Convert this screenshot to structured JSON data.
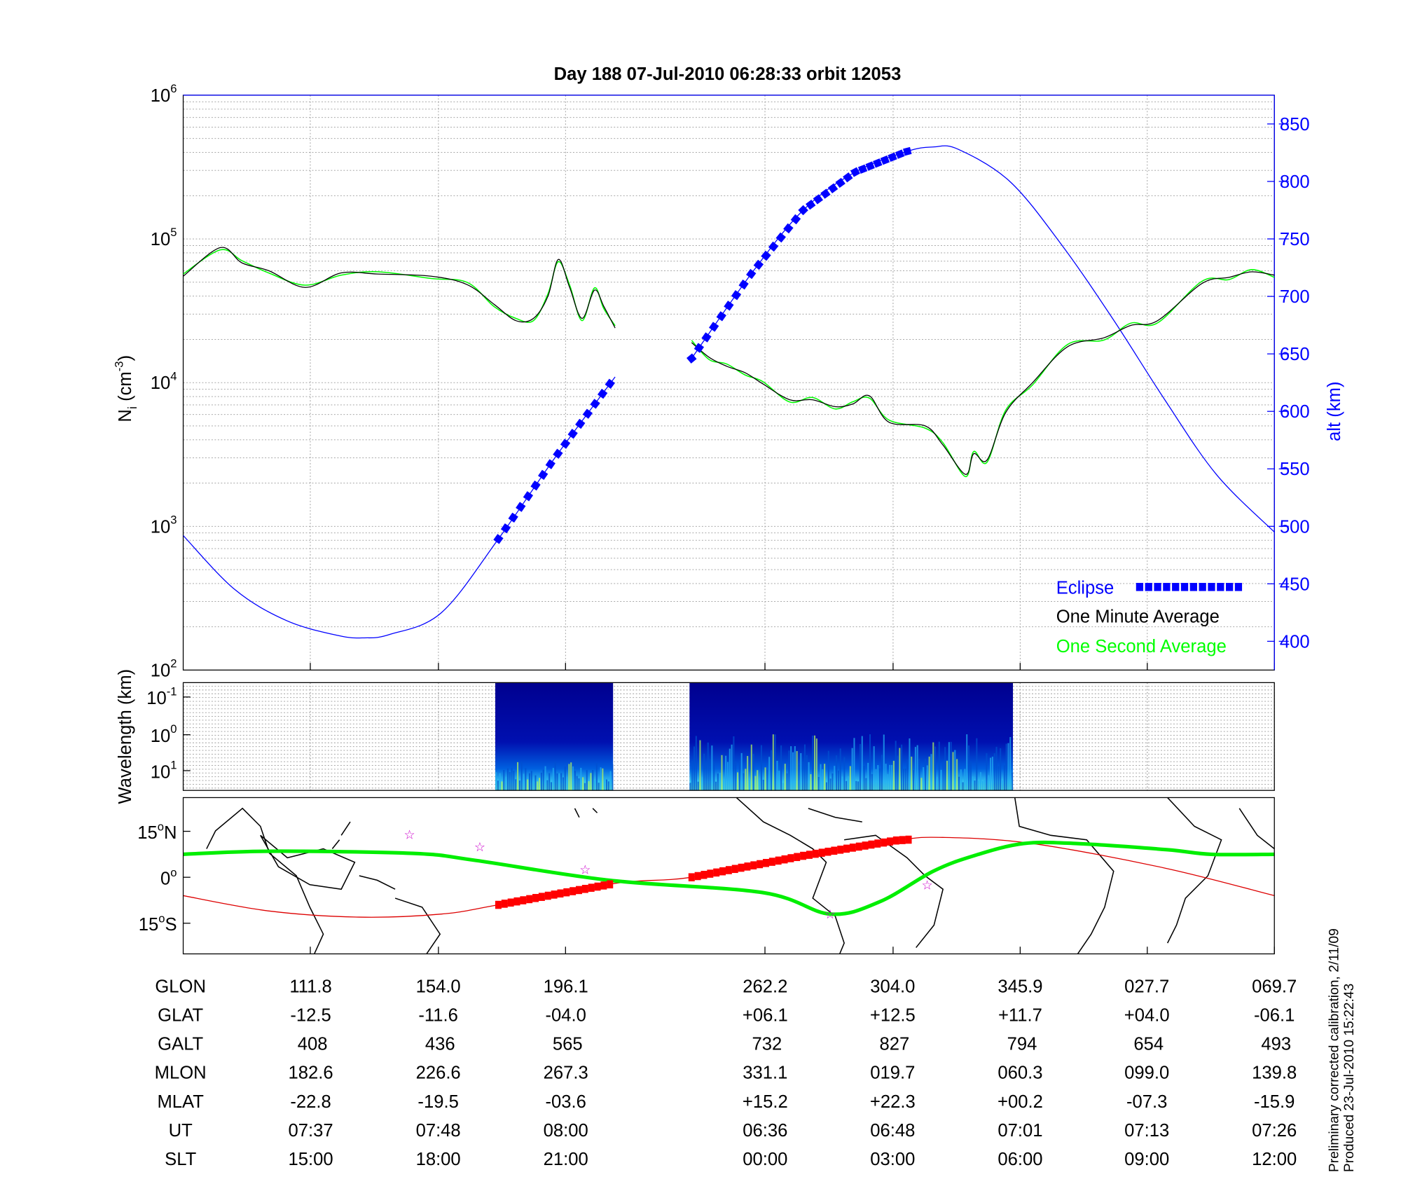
{
  "colors": {
    "eclipse": "#0000ff",
    "minute": "#000000",
    "second": "#00ff00",
    "altitude": "#0000ff",
    "track_orbit": "#00ee00",
    "track_foot": "#dd0000",
    "star": "#cc00cc"
  },
  "chart_data": [
    {
      "type": "line",
      "title": "Day 188  07-Jul-2010 06:28:33   orbit 12053",
      "xlabel": "",
      "ylabel_main": "N",
      "ylabel_sub": "i",
      "ylabel_unit_open": " (cm",
      "ylabel_unit_exp": "-3",
      "ylabel_unit_close": ")",
      "y_scale": "log",
      "ylim": [
        100,
        1000000
      ],
      "yticks": [
        {
          "base": "10",
          "exp": "2"
        },
        {
          "base": "10",
          "exp": "3"
        },
        {
          "base": "10",
          "exp": "4"
        },
        {
          "base": "10",
          "exp": "5"
        },
        {
          "base": "10",
          "exp": "6"
        }
      ],
      "y2label": "alt (km)",
      "y2lim": [
        375,
        875
      ],
      "y2ticks": [
        "400",
        "450",
        "500",
        "550",
        "600",
        "650",
        "700",
        "750",
        "800",
        "850"
      ],
      "xlim_minutes": [
        0,
        105.6
      ],
      "xticks_minutes": [
        12.3,
        24.7,
        37.0,
        56.3,
        68.7,
        81.0,
        93.3,
        105.6
      ],
      "grid": true,
      "legend_position": "bottom-right",
      "legend": [
        {
          "label": "Eclipse",
          "color": "#0000ff"
        },
        {
          "label": "One Minute Average",
          "color": "#000000"
        },
        {
          "label": "One Second Average",
          "color": "#00ff00"
        }
      ],
      "series": [
        {
          "name": "Ni one minute average (segment 1)",
          "x": [
            0,
            3.6,
            5.7,
            8.3,
            11.8,
            15.3,
            18.8,
            24,
            27.5,
            30.1,
            32.2,
            33.9,
            35.3,
            36.3,
            37.4,
            38.6,
            39.8,
            40.7,
            41.8
          ],
          "y": [
            55000,
            87000,
            68000,
            60000,
            46000,
            58000,
            57000,
            55000,
            48000,
            35000,
            27000,
            28000,
            40000,
            72000,
            46000,
            28000,
            44000,
            34000,
            24000
          ]
        },
        {
          "name": "Ni one minute average (segment 2)",
          "x": [
            49.2,
            50.9,
            52.6,
            54.4,
            56.1,
            58.7,
            60.9,
            63.1,
            64.8,
            66.4,
            68.3,
            71.8,
            73.5,
            75.7,
            76.5,
            77.8,
            79.6,
            82.2,
            85.6,
            89.1,
            91.7,
            94.3,
            98.6,
            101.2,
            103.4,
            105.6
          ],
          "y": [
            19000,
            15000,
            13000,
            11700,
            9800,
            7600,
            7600,
            6800,
            7100,
            8100,
            5300,
            5000,
            3700,
            2300,
            3200,
            2900,
            6200,
            10000,
            17800,
            20500,
            25000,
            27000,
            49000,
            54000,
            59000,
            56000
          ]
        },
        {
          "name": "Altitude (km)",
          "x": [
            0,
            5,
            10,
            15,
            17.5,
            20,
            25,
            30.5,
            36,
            41.8,
            49.2,
            55,
            60,
            65,
            70,
            72.6,
            75,
            80,
            85,
            90,
            95,
            100,
            105.6
          ],
          "y": [
            492,
            445,
            418,
            405,
            403,
            406,
            425,
            489,
            560,
            630,
            646,
            720,
            775,
            808,
            826,
            830,
            828,
            800,
            745,
            680,
            610,
            545,
            495
          ]
        },
        {
          "name": "Eclipse",
          "segments_x": [
            [
              30.5,
              41.8
            ],
            [
              49.2,
              70.2
            ]
          ]
        }
      ]
    },
    {
      "type": "heatmap",
      "ylabel": "Wavelength (km)",
      "yticks": [
        {
          "base": "10",
          "exp": "-1"
        },
        {
          "base": "10",
          "exp": "0"
        },
        {
          "base": "10",
          "exp": "1"
        }
      ],
      "data_intervals_minutes": [
        [
          30.2,
          41.6
        ],
        [
          49.0,
          80.3
        ]
      ],
      "colormap": "jet"
    },
    {
      "type": "line",
      "name": "ground track map",
      "yticks": [
        {
          "deg": "15",
          "sup": "o",
          "hemi": "N"
        },
        {
          "deg": "0",
          "sup": "o",
          "hemi": ""
        },
        {
          "deg": "15",
          "sup": "o",
          "hemi": "S"
        }
      ],
      "ylim_deg": [
        -25,
        26
      ],
      "orbit_track": {
        "x": [
          0,
          8.3,
          22.2,
          28.3,
          41.3,
          56.1,
          62.6,
          67.4,
          72.6,
          76.5,
          81.3,
          86.5,
          95.2,
          99.5,
          105.6
        ],
        "lat": [
          7.5,
          8.5,
          7.8,
          5.5,
          -1,
          -5,
          -12,
          -8,
          2,
          7,
          11,
          11,
          9,
          7.5,
          7.5
        ]
      },
      "foot_track": {
        "x": [
          0,
          8.3,
          17,
          25,
          30.5,
          41.8,
          49.2,
          60,
          69,
          73.5,
          82.2,
          95,
          105.6
        ],
        "lat": [
          -6,
          -11,
          -13,
          -12,
          -9,
          -2,
          0,
          7,
          12,
          13,
          11,
          3,
          -6
        ]
      },
      "eclipse_segments_x": [
        [
          30.5,
          41.8
        ],
        [
          49.2,
          70.2
        ]
      ],
      "stars": [
        {
          "x": 21.9,
          "lat": 14
        },
        {
          "x": 28.7,
          "lat": 10
        },
        {
          "x": 38.9,
          "lat": 2.5
        },
        {
          "x": 62.6,
          "lat": -12
        },
        {
          "x": 72,
          "lat": -2.5
        }
      ]
    }
  ],
  "table": {
    "rows": [
      {
        "label": "GLON",
        "values": [
          "111.8",
          "154.0",
          "196.1",
          "262.2",
          "304.0",
          "345.9",
          "027.7",
          "069.7"
        ]
      },
      {
        "label": "GLAT",
        "values": [
          "-12.5",
          "-11.6",
          "-04.0",
          "+06.1",
          "+12.5",
          "+11.7",
          "+04.0",
          "-06.1"
        ]
      },
      {
        "label": "GALT",
        "values": [
          "408",
          "436",
          "565",
          "732",
          "827",
          "794",
          "654",
          "493"
        ]
      },
      {
        "label": "MLON",
        "values": [
          "182.6",
          "226.6",
          "267.3",
          "331.1",
          "019.7",
          "060.3",
          "099.0",
          "139.8"
        ]
      },
      {
        "label": "MLAT",
        "values": [
          "-22.8",
          "-19.5",
          "-03.6",
          "+15.2",
          "+22.3",
          "+00.2",
          "-07.3",
          "-15.9"
        ]
      },
      {
        "label": "UT",
        "values": [
          "07:37",
          "07:48",
          "08:00",
          "06:36",
          "06:48",
          "07:01",
          "07:13",
          "07:26"
        ]
      },
      {
        "label": "SLT",
        "values": [
          "15:00",
          "18:00",
          "21:00",
          "00:00",
          "03:00",
          "06:00",
          "09:00",
          "12:00"
        ]
      }
    ]
  },
  "footer": {
    "line1": "Preliminary corrected calibration, 2/11/09",
    "line2": "Produced 23-Jul-2010 15:22:43"
  }
}
